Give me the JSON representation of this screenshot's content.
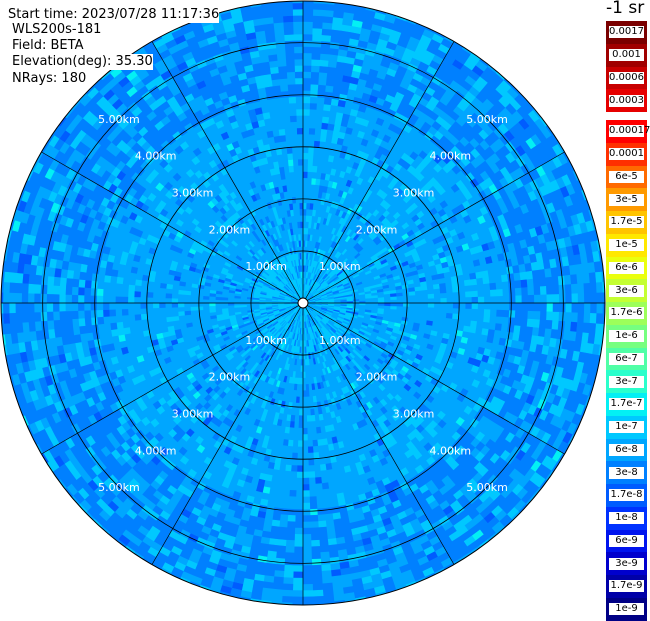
{
  "header": {
    "start_time": "Start time: 2023/07/28 11:17:36",
    "instrument": "WLS200s-181",
    "field": "Field: BETA",
    "elevation": "Elevation(deg): 35.30",
    "nrays": "NRays: 180"
  },
  "chart_data": {
    "type": "heatmap",
    "projection": "polar",
    "field": "BETA",
    "nrays": 180,
    "range_ticks_km": [
      1,
      2,
      3,
      4,
      5
    ],
    "range_tick_labels": [
      "1.00km",
      "2.00km",
      "3.00km",
      "4.00km",
      "5.00km"
    ],
    "max_range_km": 5.8,
    "spokes_deg": [
      0,
      30,
      60,
      90,
      120,
      150,
      180,
      210,
      240,
      270,
      300,
      330
    ],
    "colorbar": {
      "title": "-1 sr",
      "upper_labels": [
        "0.0017",
        "0.001",
        "0.0006",
        "0.0003"
      ],
      "upper_colors": [
        "#7a0000",
        "#a00000",
        "#c80000",
        "#e60000"
      ],
      "lower_labels": [
        "0.00017",
        "0.0001",
        "6e-5",
        "3e-5",
        "1.7e-5",
        "1e-5",
        "6e-6",
        "3e-6",
        "1.7e-6",
        "1e-6",
        "6e-7",
        "3e-7",
        "1.7e-7",
        "1e-7",
        "6e-8",
        "3e-8",
        "1.7e-8",
        "1e-8",
        "6e-9",
        "3e-9",
        "1.7e-9",
        "1e-9"
      ],
      "lower_colors": [
        "#ff0000",
        "#ff3000",
        "#ff6a00",
        "#ff9a00",
        "#ffc400",
        "#ffe800",
        "#eaff0e",
        "#c4ff33",
        "#9dff5a",
        "#76ff80",
        "#50ffa6",
        "#2affcc",
        "#03f0f4",
        "#00c8ff",
        "#00a6ff",
        "#0080ff",
        "#005cff",
        "#0032ff",
        "#0014ee",
        "#0000cd",
        "#0000a8",
        "#000085"
      ]
    },
    "beta_distribution": {
      "inner_1km": "1e-7",
      "mid_1_to_4km": "6e-8",
      "outer_4_to_5.8km": "3e-8",
      "speckle_high": "1.7e-7",
      "speckle_low": "1.7e-8"
    }
  },
  "colors": {
    "grid": "#000000",
    "range_label": "#ffffff",
    "background": "#ffffff"
  }
}
